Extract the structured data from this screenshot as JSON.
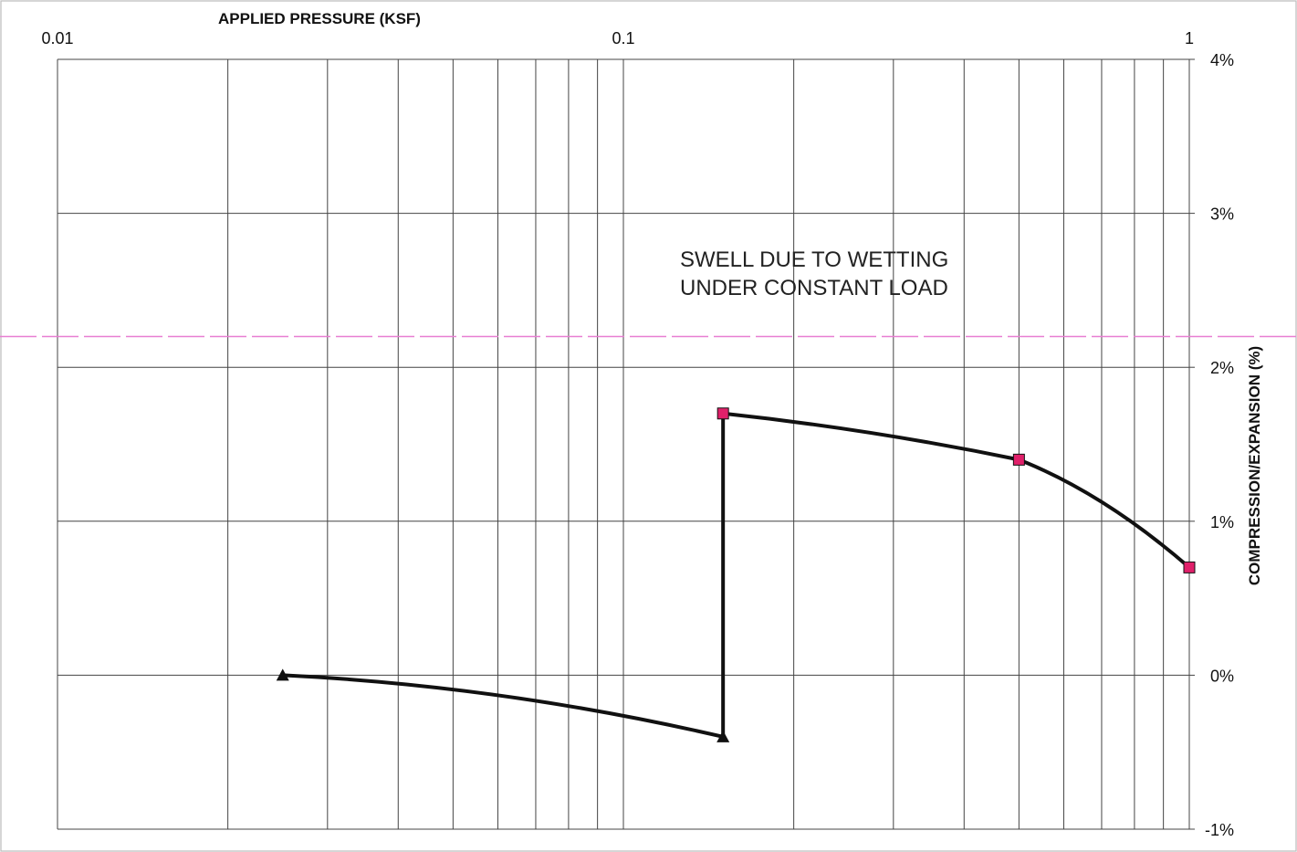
{
  "chart_data": {
    "type": "line",
    "title": "APPLIED PRESSURE (KSF)",
    "xlabel": "APPLIED PRESSURE (KSF)",
    "ylabel": "COMPRESSION/EXPANSION (%)",
    "xscale": "log",
    "xlim": [
      0.01,
      1
    ],
    "ylim": [
      -1,
      4
    ],
    "x_ticks": [
      "0.01",
      "0.1",
      "1"
    ],
    "y_ticks": [
      "4%",
      "3%",
      "2%",
      "1%",
      "0%",
      "-1%"
    ],
    "grid": true,
    "annotation": [
      "SWELL DUE TO WETTING",
      "UNDER CONSTANT LOAD"
    ],
    "reference_line": {
      "y": 2.2,
      "color": "#e87fd2",
      "style": "dashed"
    },
    "series": [
      {
        "marker": "triangle",
        "marker_color": "#111111",
        "x": [
          0.025,
          0.15
        ],
        "y": [
          0.0,
          -0.4
        ]
      },
      {
        "marker": "square",
        "marker_color": "#e0206a",
        "x": [
          0.15,
          0.5,
          1.0
        ],
        "y": [
          1.7,
          1.4,
          0.7
        ]
      }
    ],
    "wetting_step": {
      "x": 0.15,
      "from": -0.4,
      "to": 1.7
    }
  }
}
